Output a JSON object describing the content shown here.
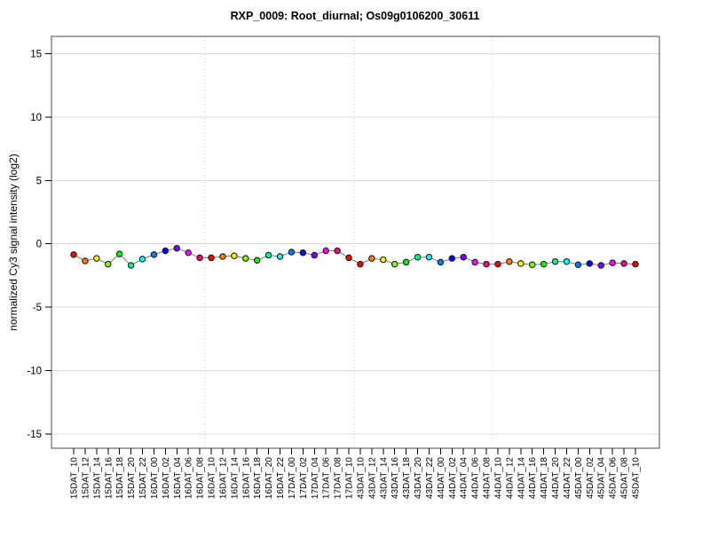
{
  "title": "RXP_0009: Root_diurnal; Os09g0106200_30611",
  "chart_data": {
    "type": "line",
    "title": "RXP_0009: Root_diurnal; Os09g0106200_30611",
    "xlabel": "",
    "ylabel": "normalized Cy3 signal intensity (log2)",
    "ylim": [
      -15.6,
      15.6
    ],
    "yticks": [
      15,
      10,
      5,
      0,
      -5,
      -10,
      -15
    ],
    "grid": "solid horizontal gray lines at every y tick; dotted vertical gray separator lines between sampling cycles",
    "legend_position": "none",
    "categories": [
      "15DAT_10",
      "15DAT_12",
      "15DAT_14",
      "15DAT_16",
      "15DAT_18",
      "15DAT_20",
      "15DAT_22",
      "16DAT_00",
      "16DAT_02",
      "16DAT_04",
      "16DAT_06",
      "16DAT_08",
      "16DAT_10",
      "16DAT_12",
      "16DAT_14",
      "16DAT_16",
      "16DAT_18",
      "16DAT_20",
      "16DAT_22",
      "17DAT_00",
      "17DAT_02",
      "17DAT_04",
      "17DAT_06",
      "17DAT_08",
      "17DAT_10",
      "43DAT_10",
      "43DAT_12",
      "43DAT_14",
      "43DAT_16",
      "43DAT_18",
      "43DAT_20",
      "43DAT_22",
      "44DAT_00",
      "44DAT_02",
      "44DAT_04",
      "44DAT_06",
      "44DAT_08",
      "44DAT_10",
      "44DAT_12",
      "44DAT_14",
      "44DAT_16",
      "44DAT_18",
      "44DAT_20",
      "44DAT_22",
      "45DAT_00",
      "45DAT_02",
      "45DAT_04",
      "45DAT_06",
      "45DAT_08",
      "45DAT_10"
    ],
    "values": [
      -0.85,
      -1.35,
      -1.15,
      -1.6,
      -0.8,
      -1.7,
      -1.2,
      -0.85,
      -0.55,
      -0.35,
      -0.7,
      -1.1,
      -1.1,
      -1.0,
      -0.95,
      -1.15,
      -1.3,
      -0.9,
      -1.0,
      -0.65,
      -0.7,
      -0.9,
      -0.55,
      -0.55,
      -1.1,
      -1.6,
      -1.15,
      -1.25,
      -1.6,
      -1.45,
      -1.05,
      -1.05,
      -1.45,
      -1.15,
      -1.05,
      -1.45,
      -1.6,
      -1.6,
      -1.4,
      -1.55,
      -1.65,
      -1.6,
      -1.4,
      -1.4,
      -1.65,
      -1.55,
      -1.7,
      -1.5,
      -1.55,
      -1.6
    ],
    "day_separator_after_index": [
      11,
      24,
      36
    ],
    "marker_colors_by_hour": {
      "00": "#0080FF",
      "02": "#0000FF",
      "04": "#8000FF",
      "06": "#FF00FF",
      "08": "#FF0080",
      "10": "#FF0000",
      "12": "#FF8000",
      "14": "#FFFF00",
      "16": "#80FF00",
      "18": "#00FF00",
      "20": "#00FF80",
      "22": "#00FFFF"
    },
    "line_color": "#7a7a7a",
    "marker_outline_color": "#1a1a1a",
    "gridline_color": "#d8d8d8",
    "separator_color": "#c8c8c8",
    "axis_color": "#000000",
    "box_color": "#4a4a4a"
  }
}
